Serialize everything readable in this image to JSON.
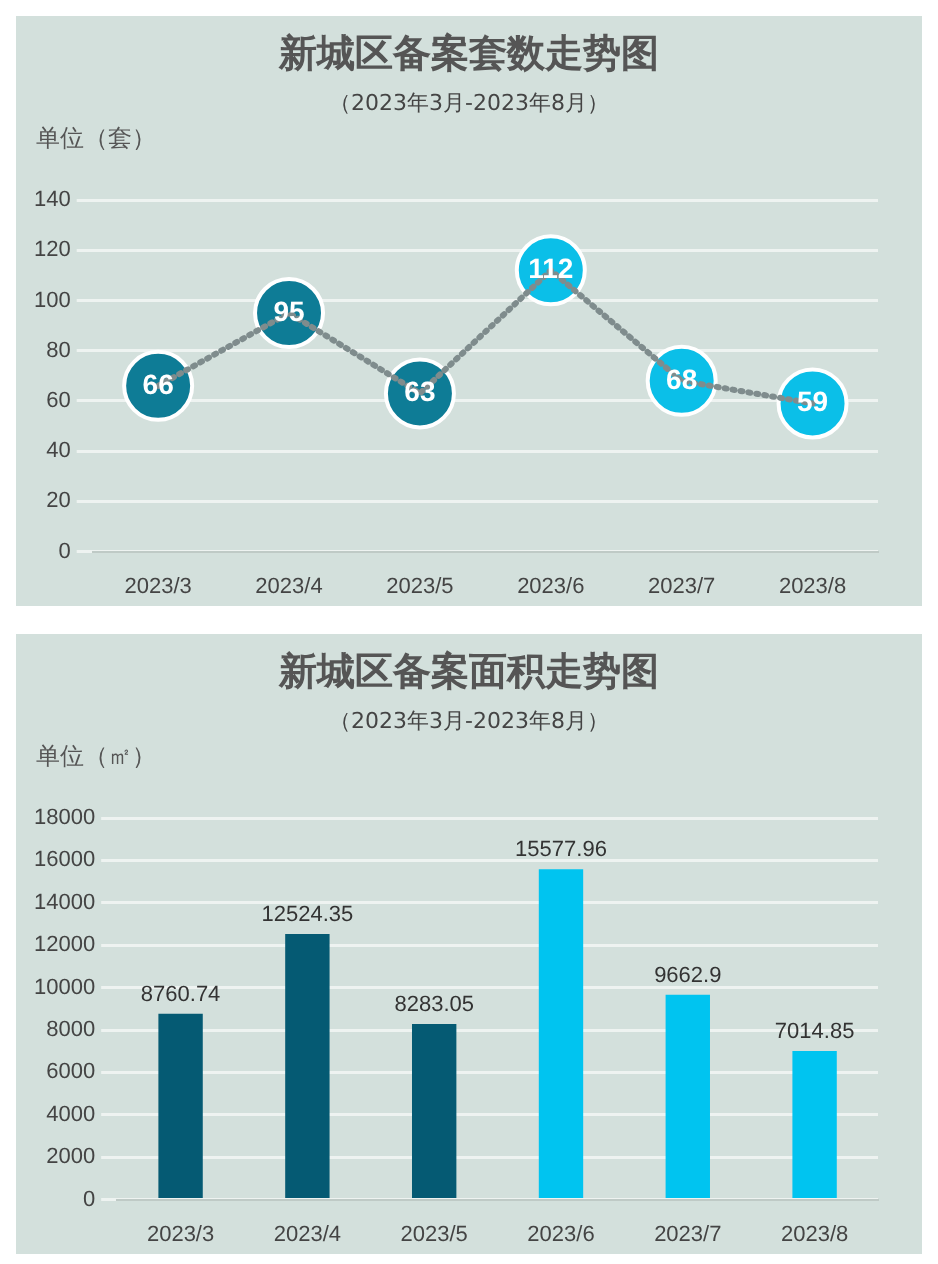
{
  "chart_data": [
    {
      "type": "line",
      "title": "新城区备案套数走势图",
      "subtitle": "（2023年3月-2023年8月）",
      "ylabel": "单位（套）",
      "categories": [
        "2023/3",
        "2023/4",
        "2023/5",
        "2023/6",
        "2023/7",
        "2023/8"
      ],
      "values": [
        66,
        95,
        63,
        112,
        68,
        59
      ],
      "color": "#7f8c8d",
      "colors": [
        "#0e7c96",
        "#0e7c96",
        "#0e7c96",
        "#0bbfe8",
        "#0bbfe8",
        "#0bbfe8"
      ],
      "ylim": [
        0,
        140
      ],
      "yticks": [
        0,
        20,
        40,
        60,
        80,
        100,
        120,
        140
      ],
      "grid": "y",
      "marker": "circle",
      "line_style": "dotted",
      "data_labels": true
    },
    {
      "type": "bar",
      "title": "新城区备案面积走势图",
      "subtitle": "（2023年3月-2023年8月）",
      "ylabel": "单位（㎡）",
      "categories": [
        "2023/3",
        "2023/4",
        "2023/5",
        "2023/6",
        "2023/7",
        "2023/8"
      ],
      "values": [
        8760.74,
        12524.35,
        8283.05,
        15577.96,
        9662.9,
        7014.85
      ],
      "colors": [
        "#055a73",
        "#055a73",
        "#055a73",
        "#00c4f0",
        "#00c4f0",
        "#00c4f0"
      ],
      "ylim": [
        0,
        18000
      ],
      "yticks": [
        0,
        2000,
        4000,
        6000,
        8000,
        10000,
        12000,
        14000,
        16000,
        18000
      ],
      "grid": "y",
      "data_labels": true
    }
  ]
}
